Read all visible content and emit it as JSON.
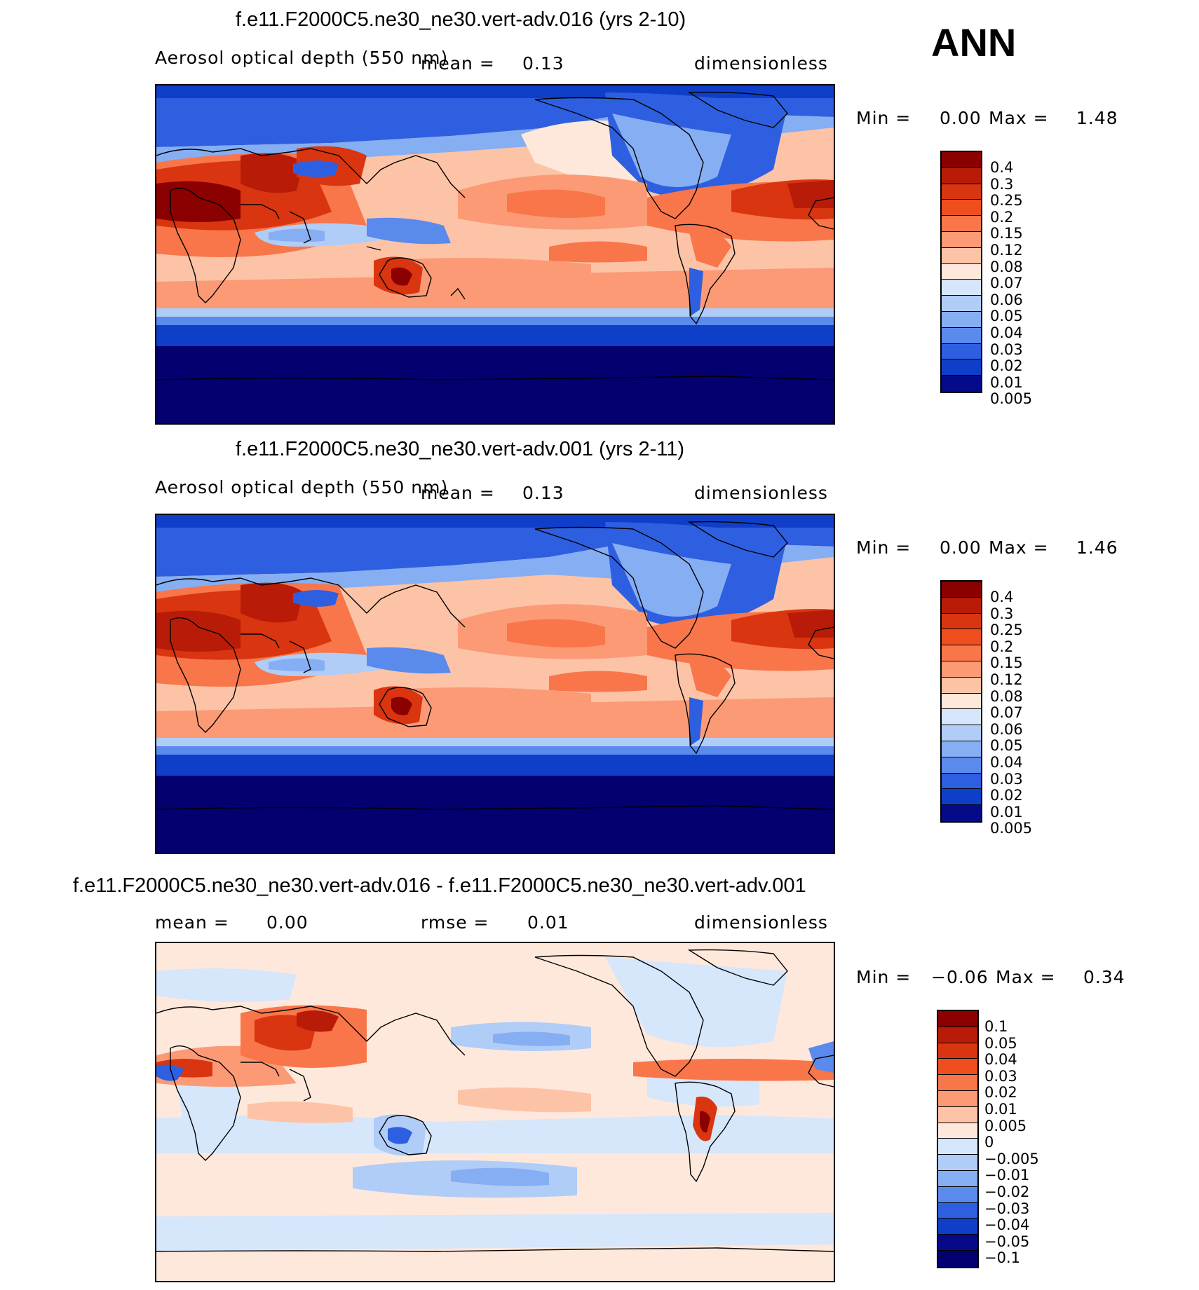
{
  "season": "ANN",
  "panels": [
    {
      "title": "f.e11.F2000C5.ne30_ne30.vert-adv.016 (yrs 2-10)",
      "variable": "Aerosol optical depth (550 nm)",
      "stat1_label": "mean =",
      "stat1_value": "0.13",
      "stat2_label": "",
      "stat2_value": "",
      "units": "dimensionless",
      "min_label": "Min =",
      "min_value": "0.00",
      "max_label": "Max =",
      "max_value": "1.48",
      "palette": "abs",
      "levels": [
        "0.4",
        "0.3",
        "0.25",
        "0.2",
        "0.15",
        "0.12",
        "0.08",
        "0.07",
        "0.06",
        "0.05",
        "0.04",
        "0.03",
        "0.02",
        "0.01",
        "0.005"
      ]
    },
    {
      "title": "f.e11.F2000C5.ne30_ne30.vert-adv.001 (yrs 2-11)",
      "variable": "Aerosol optical depth (550 nm)",
      "stat1_label": "mean =",
      "stat1_value": "0.13",
      "stat2_label": "",
      "stat2_value": "",
      "units": "dimensionless",
      "min_label": "Min =",
      "min_value": "0.00",
      "max_label": "Max =",
      "max_value": "1.46",
      "palette": "abs",
      "levels": [
        "0.4",
        "0.3",
        "0.25",
        "0.2",
        "0.15",
        "0.12",
        "0.08",
        "0.07",
        "0.06",
        "0.05",
        "0.04",
        "0.03",
        "0.02",
        "0.01",
        "0.005"
      ]
    },
    {
      "title": "f.e11.F2000C5.ne30_ne30.vert-adv.016 - f.e11.F2000C5.ne30_ne30.vert-adv.001",
      "variable": "",
      "stat1_label": "mean =",
      "stat1_value": "0.00",
      "stat2_label": "rmse =",
      "stat2_value": "0.01",
      "units": "dimensionless",
      "min_label": "Min =",
      "min_value": "−0.06",
      "max_label": "Max =",
      "max_value": "0.34",
      "palette": "diff",
      "levels": [
        "0.1",
        "0.05",
        "0.04",
        "0.03",
        "0.02",
        "0.01",
        "0.005",
        "0",
        "−0.005",
        "−0.01",
        "−0.02",
        "−0.03",
        "−0.04",
        "−0.05",
        "−0.1"
      ]
    }
  ],
  "colors": {
    "abs": [
      "#8b0000",
      "#b81c08",
      "#d93510",
      "#ef4e1e",
      "#f8764a",
      "#fb9a75",
      "#fdc3a6",
      "#fee8dc",
      "#d6e6fb",
      "#b0cdf8",
      "#86aef2",
      "#5a8aec",
      "#2e5fe0",
      "#0f3fc8",
      "#050a8a"
    ],
    "diff": [
      "#8b0000",
      "#b81c08",
      "#d93510",
      "#ef4e1e",
      "#f8764a",
      "#fb9a75",
      "#fdc3a6",
      "#fee8dc",
      "#d6e6fb",
      "#b0cdf8",
      "#86aef2",
      "#5a8aec",
      "#2e5fe0",
      "#0f3fc8",
      "#050a8a",
      "#040070"
    ]
  }
}
